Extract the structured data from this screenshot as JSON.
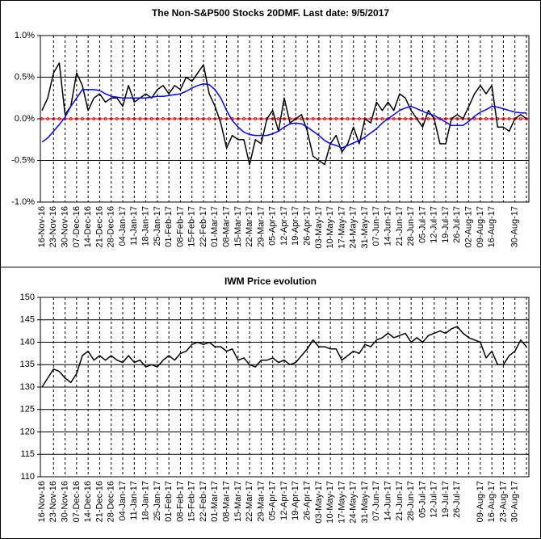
{
  "chart_data": [
    {
      "type": "line",
      "title": "The Non-S&P500 Stocks 20DMF. Last date: 9/5/2017",
      "categories": [
        "16-Nov-16",
        null,
        "23-Nov-16",
        null,
        "30-Nov-16",
        null,
        "07-Dec-16",
        null,
        "14-Dec-16",
        null,
        "21-Dec-16",
        null,
        "28-Dec-16",
        null,
        "04-Jan-17",
        null,
        "11-Jan-17",
        null,
        "18-Jan-17",
        null,
        "25-Jan-17",
        null,
        "01-Feb-17",
        null,
        "08-Feb-17",
        null,
        "15-Feb-17",
        null,
        "22-Feb-17",
        null,
        "01-Mar-17",
        null,
        "08-Mar-17",
        null,
        "15-Mar-17",
        null,
        "22-Mar-17",
        null,
        "29-Mar-17",
        null,
        "05-Apr-17",
        null,
        "12-Apr-17",
        null,
        "19-Apr-17",
        null,
        "26-Apr-17",
        null,
        "03-May-17",
        null,
        "10-May-17",
        null,
        "17-May-17",
        null,
        "24-May-17",
        null,
        "31-May-17",
        null,
        "07-Jun-17",
        null,
        "14-Jun-17",
        null,
        "21-Jun-17",
        null,
        "28-Jun-17",
        null,
        "05-Jul-17",
        null,
        "12-Jul-17",
        null,
        "19-Jul-17",
        null,
        "26-Jul-17",
        null,
        "02-Aug-17",
        null,
        "09-Aug-17",
        null,
        "16-Aug-17",
        null,
        null,
        null,
        "30-Aug-17",
        null,
        null
      ],
      "series": [
        {
          "color": "#000000",
          "values": [
            0.1,
            0.25,
            0.55,
            0.67,
            0.05,
            0.15,
            0.55,
            0.4,
            0.1,
            0.25,
            0.3,
            0.2,
            0.25,
            0.25,
            0.15,
            0.4,
            0.2,
            0.25,
            0.3,
            0.25,
            0.35,
            0.4,
            0.3,
            0.4,
            0.35,
            0.5,
            0.45,
            0.55,
            0.65,
            0.3,
            0.15,
            -0.05,
            -0.35,
            -0.2,
            -0.25,
            -0.25,
            -0.55,
            -0.25,
            -0.3,
            0.0,
            0.1,
            -0.15,
            0.25,
            -0.05,
            0.0,
            0.05,
            -0.15,
            -0.45,
            -0.5,
            -0.55,
            -0.3,
            -0.2,
            -0.4,
            -0.3,
            -0.1,
            -0.3,
            0.0,
            -0.05,
            0.2,
            0.1,
            0.2,
            0.1,
            0.3,
            0.25,
            0.1,
            0.0,
            -0.1,
            0.1,
            0.0,
            -0.3,
            -0.3,
            0.0,
            0.05,
            0.0,
            0.15,
            0.3,
            0.4,
            0.3,
            0.4,
            -0.1,
            -0.1,
            -0.15,
            0.0,
            0.05,
            0.0
          ]
        },
        {
          "color": "#0000ff",
          "values": [
            -0.28,
            -0.23,
            -0.15,
            -0.07,
            0.02,
            0.15,
            0.25,
            0.35,
            0.35,
            0.35,
            0.34,
            0.3,
            0.27,
            0.26,
            0.25,
            0.25,
            0.25,
            0.25,
            0.25,
            0.26,
            0.27,
            0.27,
            0.28,
            0.29,
            0.3,
            0.33,
            0.37,
            0.4,
            0.42,
            0.41,
            0.35,
            0.25,
            0.1,
            -0.02,
            -0.1,
            -0.16,
            -0.19,
            -0.2,
            -0.2,
            -0.2,
            -0.18,
            -0.15,
            -0.1,
            -0.06,
            -0.05,
            -0.06,
            -0.1,
            -0.15,
            -0.2,
            -0.26,
            -0.3,
            -0.32,
            -0.35,
            -0.32,
            -0.29,
            -0.26,
            -0.22,
            -0.17,
            -0.12,
            -0.05,
            0.0,
            0.05,
            0.1,
            0.13,
            0.15,
            0.12,
            0.09,
            0.06,
            0.04,
            0.0,
            -0.04,
            -0.08,
            -0.08,
            -0.08,
            -0.03,
            0.03,
            0.08,
            0.11,
            0.15,
            0.14,
            0.12,
            0.1,
            0.08,
            0.07,
            0.07
          ]
        }
      ],
      "zero_line": {
        "value": 0,
        "color": "#cc0000"
      },
      "ylim": [
        -1,
        1
      ],
      "yticks": [
        {
          "value": -1,
          "label": "-1.0%"
        },
        {
          "value": -0.5,
          "label": "-0.5%"
        },
        {
          "value": 0,
          "label": "0.0%"
        },
        {
          "value": 0.5,
          "label": "0.5%"
        },
        {
          "value": 1,
          "label": "1.0%"
        }
      ],
      "grid": true
    },
    {
      "type": "line",
      "title": "IWM Price evolution",
      "categories": [
        "16-Nov-16",
        null,
        "23-Nov-16",
        null,
        "30-Nov-16",
        null,
        "07-Dec-16",
        null,
        "14-Dec-16",
        null,
        "21-Dec-16",
        null,
        "28-Dec-16",
        null,
        "04-Jan-17",
        null,
        "11-Jan-17",
        null,
        "18-Jan-17",
        null,
        "25-Jan-17",
        null,
        "01-Feb-17",
        null,
        "08-Feb-17",
        null,
        "15-Feb-17",
        null,
        "22-Feb-17",
        null,
        "01-Mar-17",
        null,
        "08-Mar-17",
        null,
        "15-Mar-17",
        null,
        "22-Mar-17",
        null,
        "29-Mar-17",
        null,
        "05-Apr-17",
        null,
        "12-Apr-17",
        null,
        "19-Apr-17",
        null,
        "26-Apr-17",
        null,
        "03-May-17",
        null,
        "10-May-17",
        null,
        "17-May-17",
        null,
        "24-May-17",
        null,
        "31-May-17",
        null,
        "07-Jun-17",
        null,
        "14-Jun-17",
        null,
        "21-Jun-17",
        null,
        "28-Jun-17",
        null,
        "05-Jul-17",
        null,
        "12-Jul-17",
        null,
        "19-Jul-17",
        null,
        "26-Jul-17",
        null,
        null,
        null,
        "09-Aug-17",
        null,
        "16-Aug-17",
        null,
        "23-Aug-17",
        null,
        "30-Aug-17",
        null,
        null
      ],
      "series": [
        {
          "color": "#000000",
          "values": [
            130,
            132,
            134,
            133.5,
            132,
            131,
            133,
            137,
            138,
            136,
            137,
            136,
            137,
            136,
            135.5,
            137,
            135.5,
            136,
            134.5,
            135,
            134.5,
            136,
            137,
            136,
            137.5,
            138,
            139.5,
            140,
            139.5,
            140,
            139,
            139,
            138,
            138.5,
            136,
            136.5,
            135,
            134.5,
            136,
            136,
            136.5,
            135.5,
            136,
            135,
            135.5,
            137,
            138.5,
            140.5,
            139,
            139,
            138.5,
            138.5,
            136,
            137,
            138,
            137.5,
            139.5,
            139,
            140.5,
            141,
            142,
            141,
            141.5,
            142,
            140,
            141,
            140,
            141.5,
            142,
            142.5,
            142,
            143,
            143.5,
            142,
            141,
            140.5,
            140,
            136.5,
            138,
            135,
            135,
            137,
            138,
            140.5,
            139
          ]
        }
      ],
      "ylim": [
        110,
        150
      ],
      "yticks": [
        110,
        115,
        120,
        125,
        130,
        135,
        140,
        145,
        150
      ],
      "grid": true
    }
  ]
}
